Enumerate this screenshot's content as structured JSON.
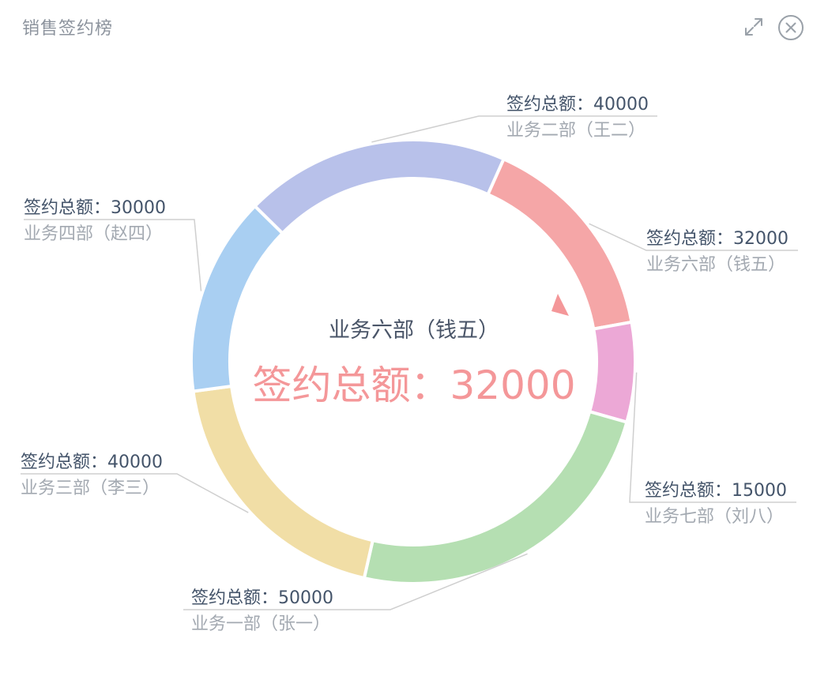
{
  "header": {
    "title": "销售签约榜",
    "expand_icon": "expand-icon",
    "close_icon": "close-icon"
  },
  "center": {
    "name": "业务六部（钱五）",
    "value_text": "签约总额：32000"
  },
  "colors": {
    "label_value": "#44546a",
    "label_name": "#a3a9b1",
    "leader": "#cfcfcf",
    "center_value": "#f49799"
  },
  "chart_data": {
    "type": "pie",
    "title": "销售签约榜",
    "donut": true,
    "series": [
      {
        "name": "签约总额",
        "slices": [
          {
            "label": "业务二部（王二）",
            "value": 40000,
            "value_text": "签约总额：40000",
            "color": "#b8c1ea"
          },
          {
            "label": "业务六部（钱五）",
            "value": 32000,
            "value_text": "签约总额：32000",
            "color": "#f5a6a7"
          },
          {
            "label": "业务七部（刘八）",
            "value": 15000,
            "value_text": "签约总额：15000",
            "color": "#eca8d6"
          },
          {
            "label": "业务一部（张一）",
            "value": 50000,
            "value_text": "签约总额：50000",
            "color": "#b5dfb2"
          },
          {
            "label": "业务三部（李三）",
            "value": 40000,
            "value_text": "签约总额：40000",
            "color": "#f1dea6"
          },
          {
            "label": "业务四部（赵四）",
            "value": 30000,
            "value_text": "签约总额：30000",
            "color": "#a9cff2"
          }
        ]
      }
    ],
    "highlighted": "业务六部（钱五）",
    "legend": "none"
  }
}
